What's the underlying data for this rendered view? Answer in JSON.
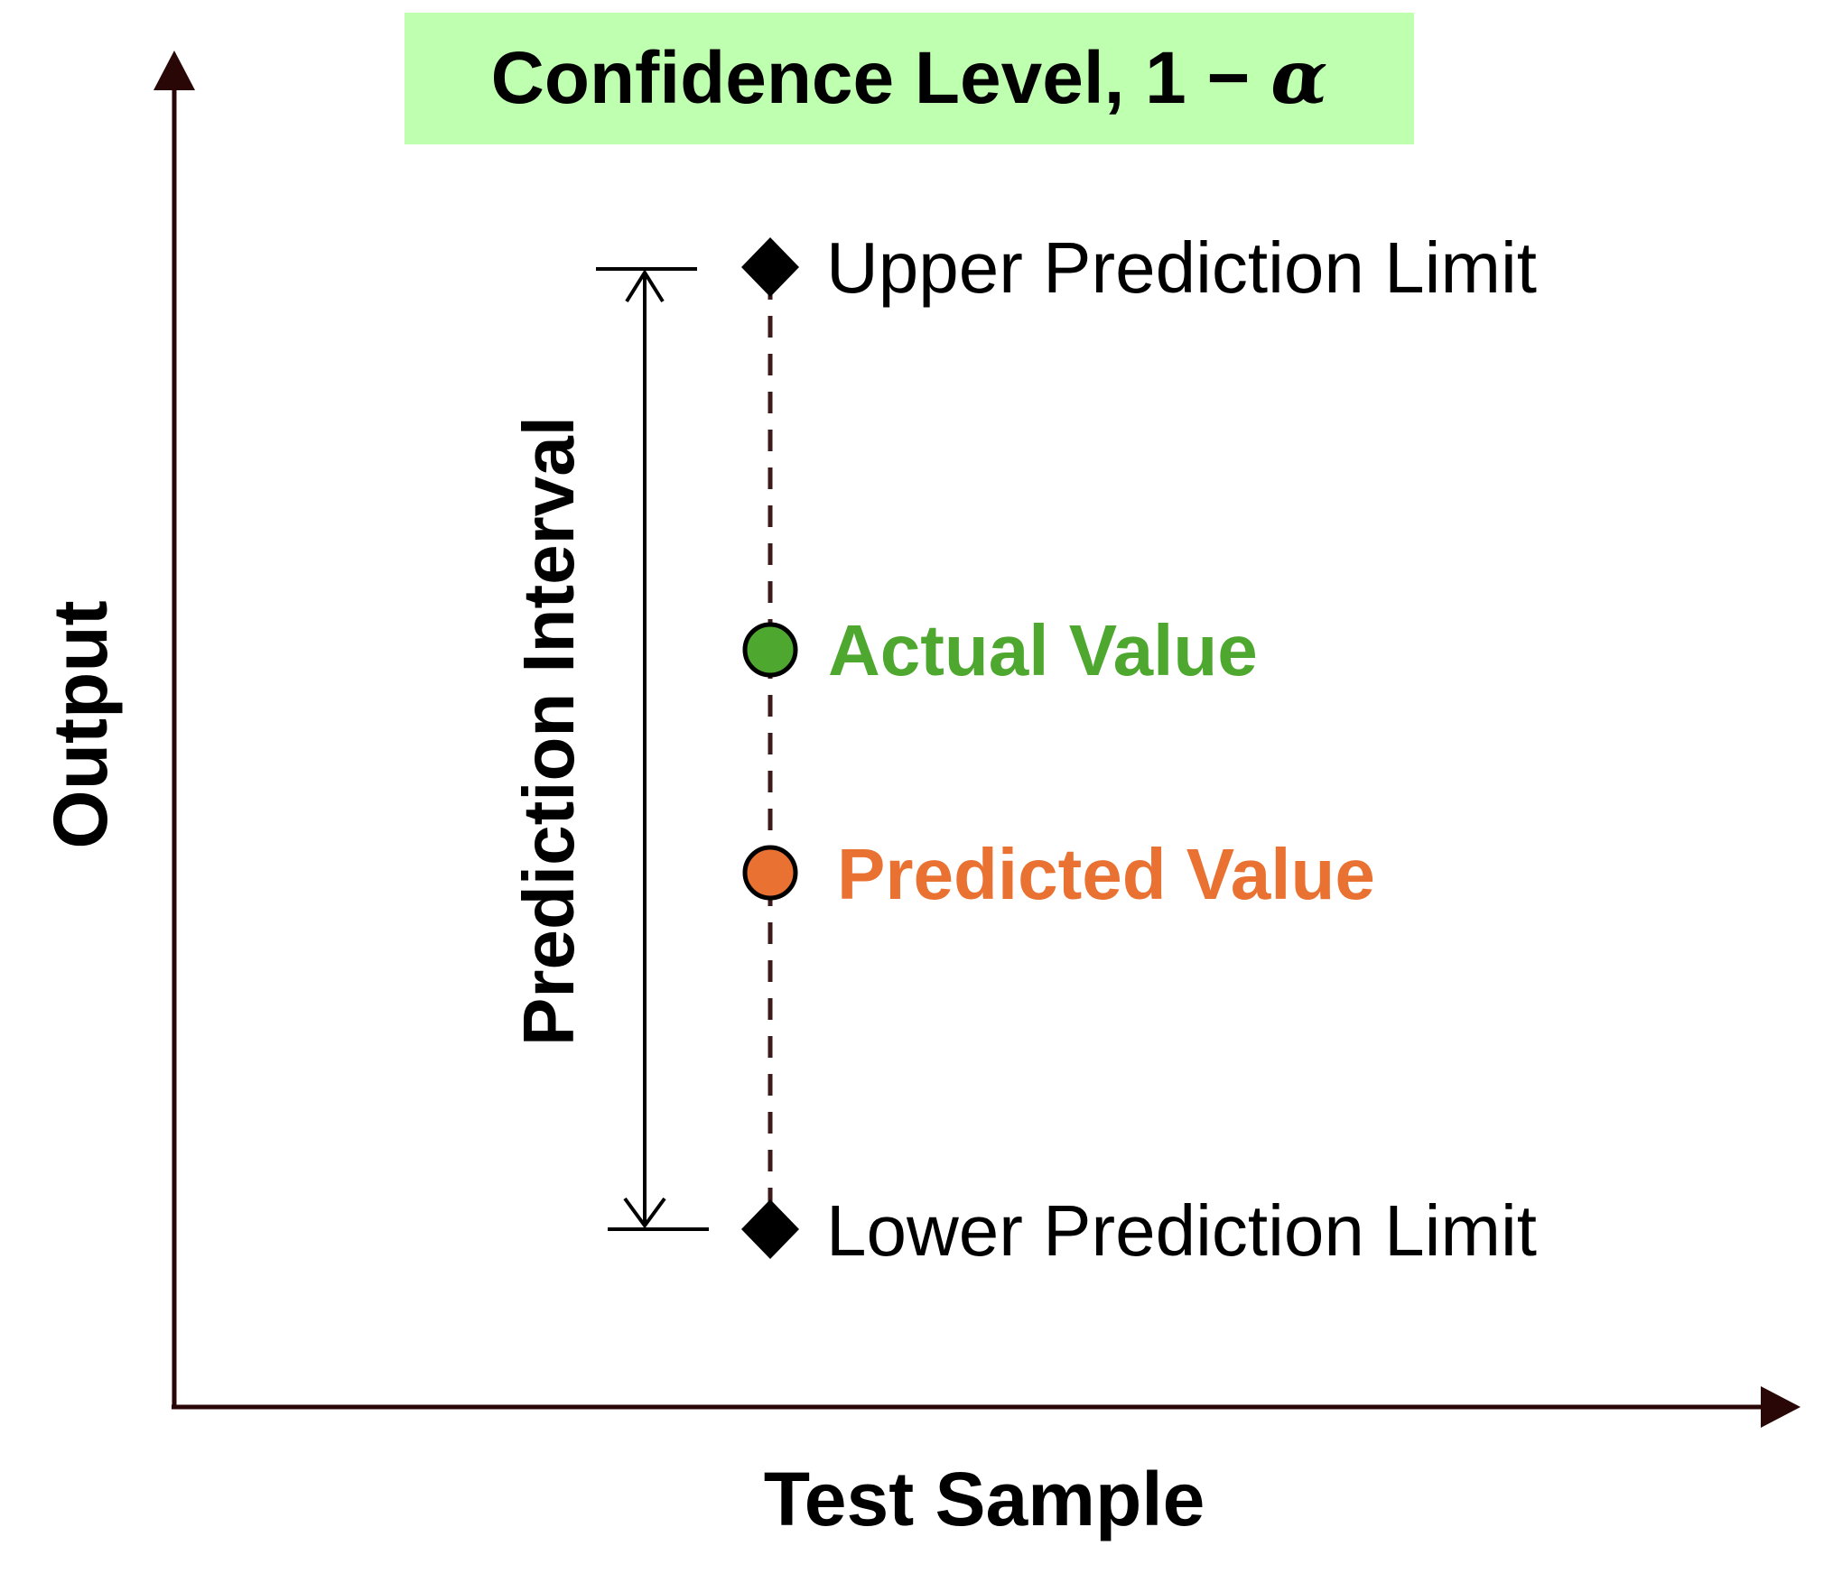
{
  "title": {
    "text_prefix": "Confidence Level, 1 − ",
    "alpha_symbol": "α",
    "background_color": "#bfffb0"
  },
  "axes": {
    "y_label": "Output",
    "x_label": "Test Sample",
    "axis_color": "#2a0707"
  },
  "interval": {
    "label": "Prediction Interval",
    "line_color": "#000000"
  },
  "markers": {
    "upper_limit_label": "Upper Prediction Limit",
    "lower_limit_label": "Lower Prediction Limit",
    "actual_value_label": "Actual Value",
    "predicted_value_label": "Predicted Value",
    "actual_color": "#4ea72e",
    "predicted_color": "#e97132",
    "dashed_line_color": "#3b1a1a"
  }
}
